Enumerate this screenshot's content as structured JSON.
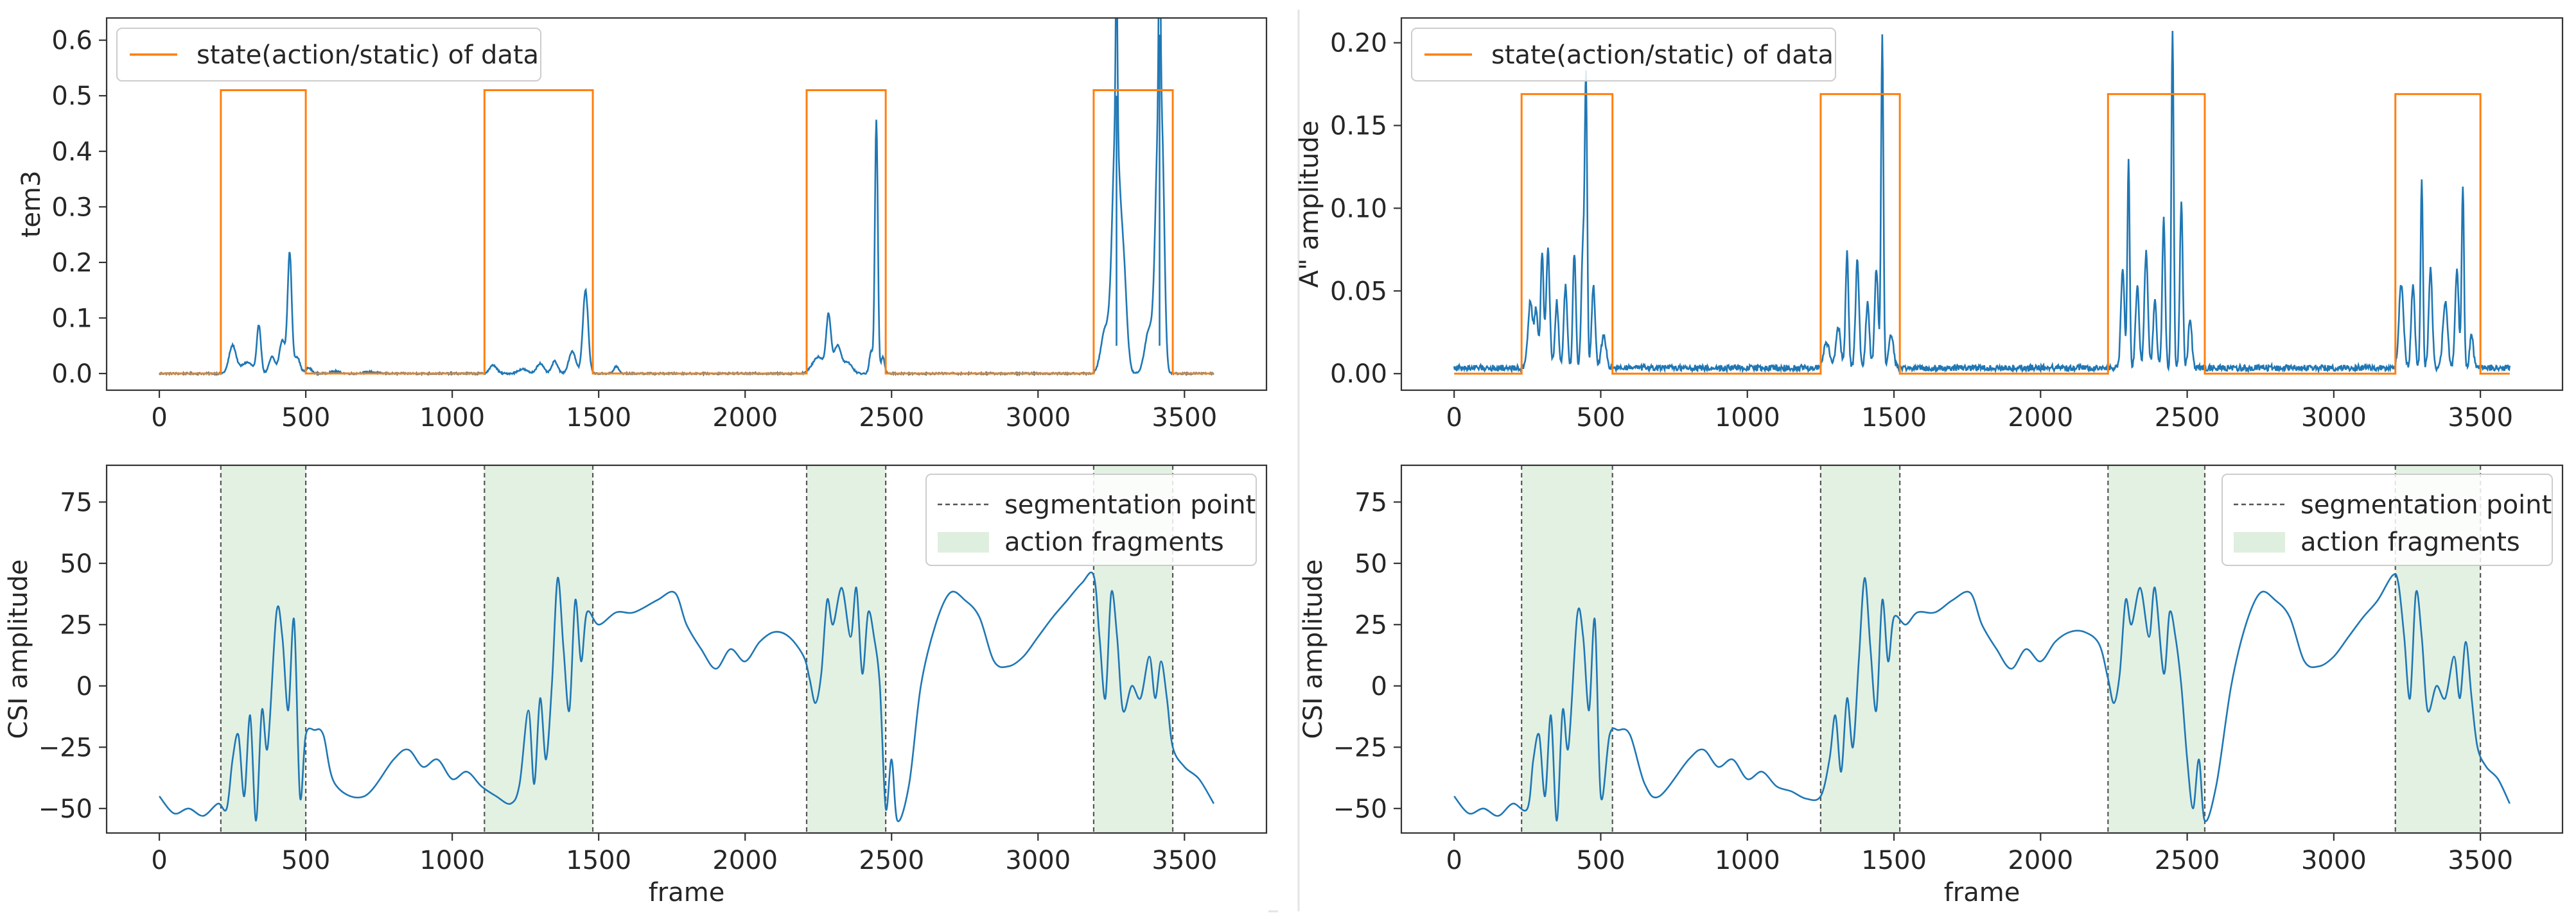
{
  "colors": {
    "signal": "#1f77b4",
    "state": "#ff7f0e",
    "shade": "#d9ecd9",
    "segmentation_line": "#555555"
  },
  "legend_labels": {
    "state": "state(action/static) of data",
    "segmentation": "segmentation point",
    "fragments": "action fragments"
  },
  "chart_data": [
    {
      "id": "top-left",
      "type": "line",
      "ylabel": "tem3",
      "xlabel": "",
      "xlim": [
        -180,
        3780
      ],
      "ylim": [
        -0.03,
        0.64
      ],
      "xticks": [
        0,
        500,
        1000,
        1500,
        2000,
        2500,
        3000,
        3500
      ],
      "xtick_labels": [
        "0",
        "500",
        "1000",
        "1500",
        "2000",
        "2500",
        "3000",
        "3500"
      ],
      "yticks": [
        0.0,
        0.1,
        0.2,
        0.3,
        0.4,
        0.5,
        0.6
      ],
      "ytick_labels": [
        "0.0",
        "0.1",
        "0.2",
        "0.3",
        "0.4",
        "0.5",
        "0.6"
      ],
      "legend_position": "upper left",
      "state_high": 0.51,
      "state_low": 0.0,
      "actions": [
        [
          210,
          500
        ],
        [
          1110,
          1480
        ],
        [
          2210,
          2480
        ],
        [
          3190,
          3460
        ]
      ],
      "signal_baseline": 0.0,
      "signal_noise": 0.0015,
      "signal_peaks": [
        [
          250,
          0.05,
          12
        ],
        [
          340,
          0.085,
          7
        ],
        [
          300,
          0.02,
          20
        ],
        [
          385,
          0.03,
          10
        ],
        [
          420,
          0.06,
          10
        ],
        [
          445,
          0.215,
          7
        ],
        [
          470,
          0.03,
          10
        ],
        [
          510,
          0.01,
          10
        ],
        [
          600,
          0.004,
          15
        ],
        [
          720,
          0.003,
          20
        ],
        [
          1140,
          0.015,
          12
        ],
        [
          1240,
          0.008,
          15
        ],
        [
          1300,
          0.018,
          12
        ],
        [
          1350,
          0.022,
          10
        ],
        [
          1410,
          0.04,
          12
        ],
        [
          1455,
          0.15,
          9
        ],
        [
          1560,
          0.013,
          8
        ],
        [
          2250,
          0.03,
          20
        ],
        [
          2285,
          0.1,
          8
        ],
        [
          2315,
          0.05,
          12
        ],
        [
          2350,
          0.02,
          15
        ],
        [
          2430,
          0.04,
          6
        ],
        [
          2448,
          0.455,
          5
        ],
        [
          2470,
          0.03,
          6
        ],
        [
          3230,
          0.08,
          15
        ],
        [
          3265,
          0.42,
          12
        ],
        [
          3290,
          0.2,
          12
        ],
        [
          3380,
          0.08,
          15
        ],
        [
          3410,
          0.4,
          10
        ],
        [
          3425,
          0.3,
          8
        ]
      ],
      "signal_spikes": [
        [
          3268,
          0.5
        ],
        [
          3415,
          0.61
        ]
      ]
    },
    {
      "id": "top-right",
      "type": "line",
      "ylabel": "A\" amplitude",
      "xlabel": "",
      "xlim": [
        -180,
        3780
      ],
      "ylim": [
        -0.01,
        0.215
      ],
      "xticks": [
        0,
        500,
        1000,
        1500,
        2000,
        2500,
        3000,
        3500
      ],
      "xtick_labels": [
        "0",
        "500",
        "1000",
        "1500",
        "2000",
        "2500",
        "3000",
        "3500"
      ],
      "yticks": [
        0.0,
        0.05,
        0.1,
        0.15,
        0.2
      ],
      "ytick_labels": [
        "0.00",
        "0.05",
        "0.10",
        "0.15",
        "0.20"
      ],
      "legend_position": "upper left",
      "state_high": 0.169,
      "state_low": 0.0,
      "actions": [
        [
          230,
          540
        ],
        [
          1250,
          1520
        ],
        [
          2230,
          2560
        ],
        [
          3210,
          3500
        ]
      ],
      "signal_baseline": 0.0035,
      "signal_noise": 0.0018,
      "signal_peaks": [
        [
          260,
          0.04,
          8
        ],
        [
          280,
          0.035,
          6
        ],
        [
          300,
          0.07,
          5
        ],
        [
          320,
          0.072,
          6
        ],
        [
          350,
          0.04,
          6
        ],
        [
          380,
          0.05,
          6
        ],
        [
          410,
          0.07,
          5
        ],
        [
          440,
          0.075,
          6
        ],
        [
          450,
          0.16,
          4
        ],
        [
          475,
          0.05,
          6
        ],
        [
          510,
          0.02,
          8
        ],
        [
          1270,
          0.015,
          10
        ],
        [
          1310,
          0.025,
          8
        ],
        [
          1340,
          0.07,
          5
        ],
        [
          1375,
          0.065,
          6
        ],
        [
          1410,
          0.04,
          6
        ],
        [
          1440,
          0.06,
          6
        ],
        [
          1460,
          0.2,
          4
        ],
        [
          1490,
          0.02,
          8
        ],
        [
          2280,
          0.06,
          6
        ],
        [
          2300,
          0.125,
          4
        ],
        [
          2330,
          0.05,
          6
        ],
        [
          2360,
          0.07,
          6
        ],
        [
          2390,
          0.04,
          6
        ],
        [
          2420,
          0.09,
          5
        ],
        [
          2450,
          0.205,
          4
        ],
        [
          2480,
          0.1,
          5
        ],
        [
          2510,
          0.03,
          6
        ],
        [
          3230,
          0.05,
          8
        ],
        [
          3270,
          0.05,
          6
        ],
        [
          3300,
          0.113,
          4
        ],
        [
          3330,
          0.06,
          6
        ],
        [
          3380,
          0.04,
          8
        ],
        [
          3420,
          0.06,
          6
        ],
        [
          3440,
          0.11,
          4
        ],
        [
          3470,
          0.02,
          6
        ]
      ],
      "signal_spikes": []
    },
    {
      "id": "bottom-left",
      "type": "line",
      "ylabel": "CSI amplitude",
      "xlabel": "frame",
      "xlim": [
        -180,
        3780
      ],
      "ylim": [
        -60,
        90
      ],
      "xticks": [
        0,
        500,
        1000,
        1500,
        2000,
        2500,
        3000,
        3500
      ],
      "xtick_labels": [
        "0",
        "500",
        "1000",
        "1500",
        "2000",
        "2500",
        "3000",
        "3500"
      ],
      "yticks": [
        -50,
        -25,
        0,
        25,
        50,
        75
      ],
      "ytick_labels": [
        "−50",
        "−25",
        "0",
        "25",
        "50",
        "75"
      ],
      "legend_position": "upper right",
      "segmentation_points": [
        210,
        500,
        1110,
        1480,
        2210,
        2480,
        3190,
        3460
      ],
      "fragments": [
        [
          210,
          500
        ],
        [
          1110,
          1480
        ],
        [
          2210,
          2480
        ],
        [
          3190,
          3460
        ]
      ],
      "csi_points": [
        [
          0,
          -45
        ],
        [
          50,
          -52
        ],
        [
          100,
          -50
        ],
        [
          150,
          -53
        ],
        [
          200,
          -48
        ],
        [
          230,
          -50
        ],
        [
          250,
          -30
        ],
        [
          270,
          -20
        ],
        [
          290,
          -45
        ],
        [
          310,
          -12
        ],
        [
          330,
          -55
        ],
        [
          350,
          -10
        ],
        [
          370,
          -25
        ],
        [
          400,
          30
        ],
        [
          420,
          20
        ],
        [
          440,
          -10
        ],
        [
          460,
          27
        ],
        [
          480,
          -45
        ],
        [
          500,
          -20
        ],
        [
          530,
          -18
        ],
        [
          560,
          -20
        ],
        [
          600,
          -40
        ],
        [
          700,
          -45
        ],
        [
          800,
          -30
        ],
        [
          850,
          -26
        ],
        [
          900,
          -33
        ],
        [
          950,
          -30
        ],
        [
          1000,
          -38
        ],
        [
          1050,
          -35
        ],
        [
          1100,
          -41
        ],
        [
          1150,
          -45
        ],
        [
          1200,
          -48
        ],
        [
          1230,
          -40
        ],
        [
          1260,
          -10
        ],
        [
          1280,
          -40
        ],
        [
          1300,
          -5
        ],
        [
          1320,
          -30
        ],
        [
          1340,
          0
        ],
        [
          1360,
          44
        ],
        [
          1380,
          15
        ],
        [
          1400,
          -10
        ],
        [
          1420,
          35
        ],
        [
          1440,
          10
        ],
        [
          1460,
          30
        ],
        [
          1500,
          25
        ],
        [
          1560,
          30
        ],
        [
          1620,
          30
        ],
        [
          1700,
          35
        ],
        [
          1760,
          38
        ],
        [
          1800,
          25
        ],
        [
          1850,
          15
        ],
        [
          1900,
          7
        ],
        [
          1950,
          15
        ],
        [
          2000,
          10
        ],
        [
          2050,
          18
        ],
        [
          2100,
          22
        ],
        [
          2150,
          20
        ],
        [
          2200,
          12
        ],
        [
          2220,
          3
        ],
        [
          2240,
          -7
        ],
        [
          2260,
          5
        ],
        [
          2280,
          35
        ],
        [
          2300,
          25
        ],
        [
          2330,
          40
        ],
        [
          2360,
          20
        ],
        [
          2380,
          40
        ],
        [
          2400,
          5
        ],
        [
          2420,
          30
        ],
        [
          2440,
          20
        ],
        [
          2460,
          0
        ],
        [
          2480,
          -50
        ],
        [
          2500,
          -30
        ],
        [
          2520,
          -55
        ],
        [
          2560,
          -40
        ],
        [
          2600,
          0
        ],
        [
          2650,
          25
        ],
        [
          2700,
          38
        ],
        [
          2750,
          35
        ],
        [
          2800,
          28
        ],
        [
          2850,
          10
        ],
        [
          2900,
          8
        ],
        [
          2950,
          12
        ],
        [
          3000,
          20
        ],
        [
          3050,
          28
        ],
        [
          3100,
          35
        ],
        [
          3150,
          42
        ],
        [
          3190,
          45
        ],
        [
          3210,
          20
        ],
        [
          3230,
          -5
        ],
        [
          3250,
          38
        ],
        [
          3270,
          20
        ],
        [
          3290,
          -10
        ],
        [
          3320,
          0
        ],
        [
          3350,
          -5
        ],
        [
          3380,
          12
        ],
        [
          3400,
          -5
        ],
        [
          3420,
          10
        ],
        [
          3440,
          -5
        ],
        [
          3460,
          -25
        ],
        [
          3500,
          -33
        ],
        [
          3550,
          -38
        ],
        [
          3600,
          -48
        ]
      ]
    },
    {
      "id": "bottom-right",
      "type": "line",
      "ylabel": "CSI amplitude",
      "xlabel": "frame",
      "xlim": [
        -180,
        3780
      ],
      "ylim": [
        -60,
        90
      ],
      "xticks": [
        0,
        500,
        1000,
        1500,
        2000,
        2500,
        3000,
        3500
      ],
      "xtick_labels": [
        "0",
        "500",
        "1000",
        "1500",
        "2000",
        "2500",
        "3000",
        "3500"
      ],
      "yticks": [
        -50,
        -25,
        0,
        25,
        50,
        75
      ],
      "ytick_labels": [
        "−50",
        "−25",
        "0",
        "25",
        "50",
        "75"
      ],
      "legend_position": "upper right",
      "segmentation_points": [
        230,
        540,
        1250,
        1520,
        2230,
        2560,
        3210,
        3500
      ],
      "fragments": [
        [
          230,
          540
        ],
        [
          1250,
          1520
        ],
        [
          2230,
          2560
        ],
        [
          3210,
          3500
        ]
      ],
      "csi_points": [
        [
          0,
          -45
        ],
        [
          50,
          -52
        ],
        [
          100,
          -50
        ],
        [
          150,
          -53
        ],
        [
          200,
          -48
        ],
        [
          250,
          -50
        ],
        [
          270,
          -30
        ],
        [
          290,
          -20
        ],
        [
          310,
          -45
        ],
        [
          330,
          -12
        ],
        [
          350,
          -55
        ],
        [
          370,
          -10
        ],
        [
          390,
          -25
        ],
        [
          420,
          29
        ],
        [
          440,
          20
        ],
        [
          460,
          -10
        ],
        [
          480,
          27
        ],
        [
          500,
          -45
        ],
        [
          530,
          -20
        ],
        [
          560,
          -18
        ],
        [
          600,
          -20
        ],
        [
          650,
          -40
        ],
        [
          700,
          -45
        ],
        [
          800,
          -30
        ],
        [
          850,
          -26
        ],
        [
          900,
          -33
        ],
        [
          950,
          -30
        ],
        [
          1000,
          -38
        ],
        [
          1050,
          -35
        ],
        [
          1100,
          -41
        ],
        [
          1150,
          -43
        ],
        [
          1200,
          -46
        ],
        [
          1250,
          -45
        ],
        [
          1280,
          -30
        ],
        [
          1300,
          -12
        ],
        [
          1320,
          -35
        ],
        [
          1340,
          -5
        ],
        [
          1360,
          -25
        ],
        [
          1380,
          10
        ],
        [
          1400,
          44
        ],
        [
          1420,
          15
        ],
        [
          1440,
          -10
        ],
        [
          1460,
          35
        ],
        [
          1480,
          10
        ],
        [
          1500,
          28
        ],
        [
          1540,
          25
        ],
        [
          1580,
          30
        ],
        [
          1640,
          30
        ],
        [
          1700,
          35
        ],
        [
          1760,
          38
        ],
        [
          1800,
          25
        ],
        [
          1850,
          15
        ],
        [
          1900,
          7
        ],
        [
          1950,
          15
        ],
        [
          2000,
          10
        ],
        [
          2050,
          18
        ],
        [
          2100,
          22
        ],
        [
          2150,
          22
        ],
        [
          2200,
          17
        ],
        [
          2230,
          3
        ],
        [
          2250,
          -7
        ],
        [
          2270,
          5
        ],
        [
          2290,
          35
        ],
        [
          2310,
          25
        ],
        [
          2340,
          40
        ],
        [
          2370,
          20
        ],
        [
          2390,
          40
        ],
        [
          2420,
          5
        ],
        [
          2440,
          30
        ],
        [
          2460,
          20
        ],
        [
          2480,
          0
        ],
        [
          2500,
          -30
        ],
        [
          2520,
          -50
        ],
        [
          2540,
          -30
        ],
        [
          2560,
          -55
        ],
        [
          2600,
          -40
        ],
        [
          2650,
          0
        ],
        [
          2700,
          25
        ],
        [
          2750,
          38
        ],
        [
          2800,
          35
        ],
        [
          2850,
          28
        ],
        [
          2900,
          10
        ],
        [
          2950,
          8
        ],
        [
          3000,
          12
        ],
        [
          3050,
          20
        ],
        [
          3100,
          28
        ],
        [
          3150,
          35
        ],
        [
          3200,
          45
        ],
        [
          3220,
          42
        ],
        [
          3240,
          20
        ],
        [
          3260,
          -5
        ],
        [
          3280,
          38
        ],
        [
          3300,
          20
        ],
        [
          3320,
          -10
        ],
        [
          3350,
          0
        ],
        [
          3380,
          -5
        ],
        [
          3410,
          12
        ],
        [
          3430,
          -5
        ],
        [
          3450,
          18
        ],
        [
          3470,
          -5
        ],
        [
          3490,
          -25
        ],
        [
          3520,
          -33
        ],
        [
          3560,
          -38
        ],
        [
          3600,
          -48
        ]
      ]
    }
  ]
}
